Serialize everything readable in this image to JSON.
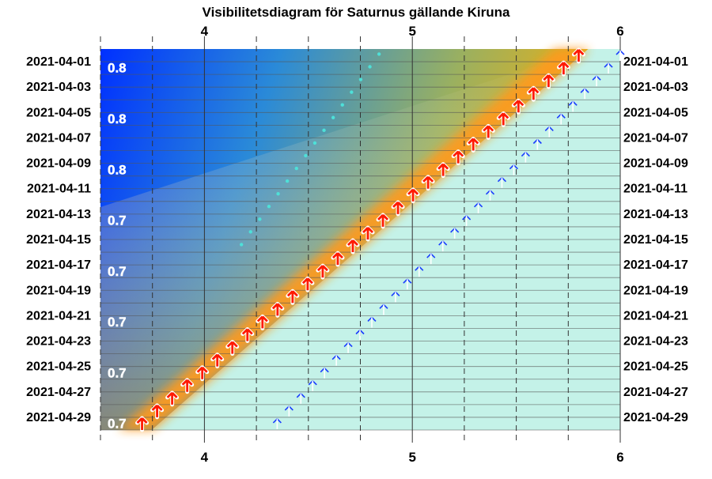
{
  "title": "Visibilitetsdiagram för Saturnus gällande Kiruna",
  "chart_data": {
    "type": "heatmap",
    "title": "Visibilitetsdiagram för Saturnus gällande Kiruna",
    "xlim": [
      3.5,
      6.0
    ],
    "x_ticks": [
      "4",
      "5",
      "6"
    ],
    "x_tick_values": [
      4,
      5,
      6
    ],
    "dates": [
      "2021-04-01",
      "2021-04-03",
      "2021-04-05",
      "2021-04-07",
      "2021-04-09",
      "2021-04-11",
      "2021-04-13",
      "2021-04-15",
      "2021-04-17",
      "2021-04-19",
      "2021-04-21",
      "2021-04-23",
      "2021-04-25",
      "2021-04-27",
      "2021-04-29"
    ],
    "magnitude_labels": [
      {
        "date": "2021-04-02",
        "text": "0.8"
      },
      {
        "date": "2021-04-06",
        "text": "0.8"
      },
      {
        "date": "2021-04-10",
        "text": "0.8"
      },
      {
        "date": "2021-04-14",
        "text": "0.7"
      },
      {
        "date": "2021-04-18",
        "text": "0.7"
      },
      {
        "date": "2021-04-22",
        "text": "0.7"
      },
      {
        "date": "2021-04-26",
        "text": "0.7"
      },
      {
        "date": "2021-04-30",
        "text": "0.7"
      }
    ],
    "rise_start": [
      5.8,
      3.7
    ],
    "twilight_start": [
      6.0,
      4.35
    ],
    "dawn_dots": [
      4.84,
      3.56
    ],
    "grid": true
  }
}
